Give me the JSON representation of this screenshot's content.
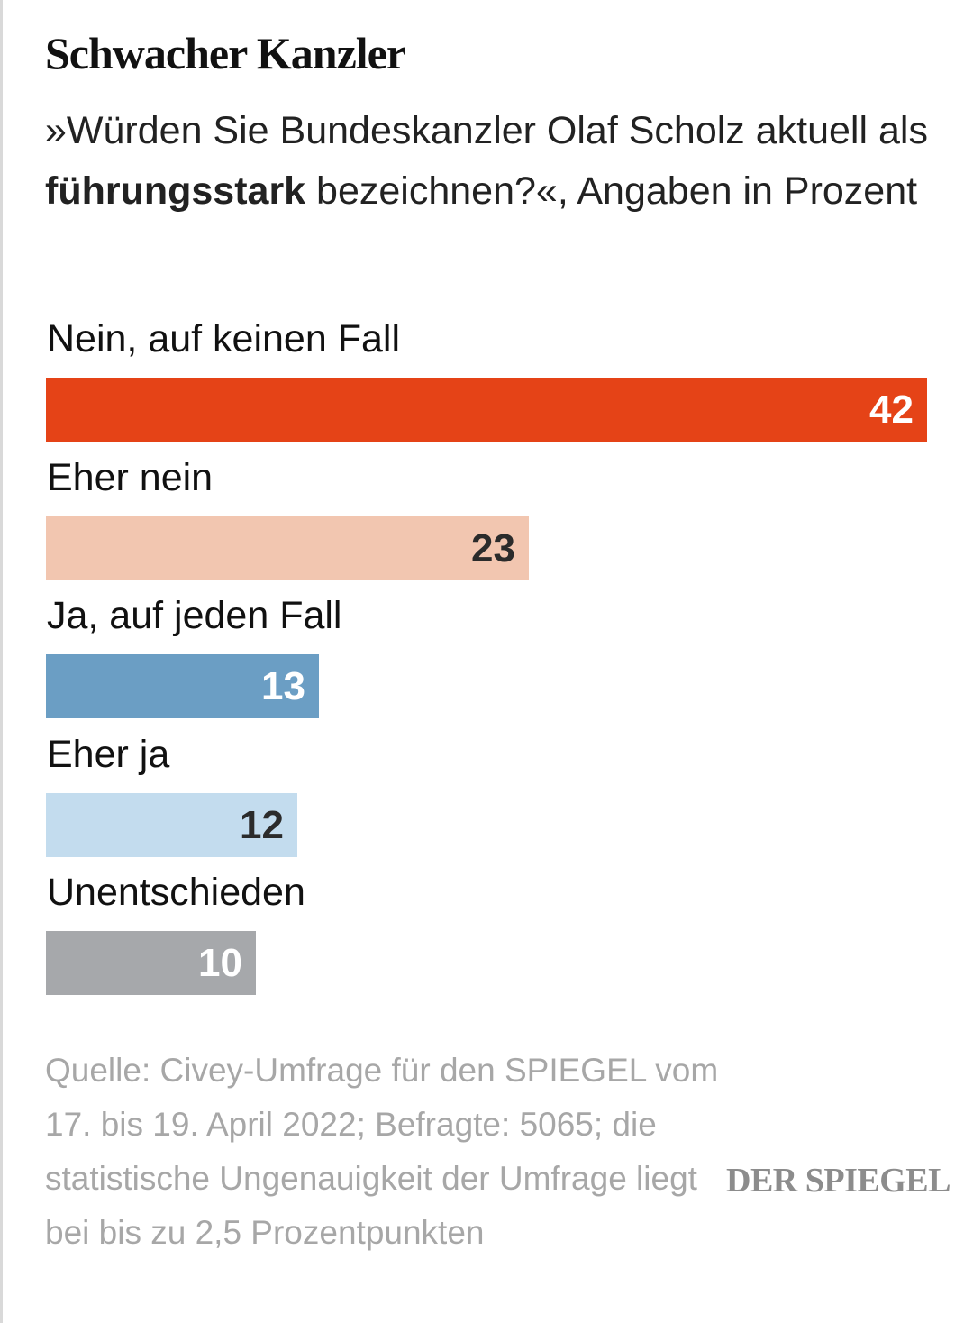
{
  "title": "Schwacher Kanzler",
  "subtitle": {
    "part1": "»Würden Sie Bundeskanzler Olaf Scholz aktuell als ",
    "bold": "führungsstark",
    "part2": " bezeichnen?«, Angaben in Prozent"
  },
  "chart_data": {
    "type": "bar",
    "orientation": "horizontal",
    "categories": [
      "Nein, auf keinen Fall",
      "Eher nein",
      "Ja, auf jeden Fall",
      "Eher ja",
      "Unentschieden"
    ],
    "values": [
      42,
      23,
      13,
      12,
      10
    ],
    "colors": [
      "#e54317",
      "#f2c6b0",
      "#6b9ec4",
      "#c3dcee",
      "#a6a8ab"
    ],
    "label_colors": [
      "#ffffff",
      "#2b2b2b",
      "#ffffff",
      "#2b2b2b",
      "#ffffff"
    ],
    "xlim": [
      0,
      42
    ],
    "grid": false
  },
  "source": "Quelle: Civey-Umfrage für den SPIEGEL vom 17. bis 19. April 2022; Befragte: 5065; die statistische Ungenauigkeit der Umfrage liegt bei bis zu 2,5 Prozentpunkten",
  "logo": "DER SPIEGEL"
}
